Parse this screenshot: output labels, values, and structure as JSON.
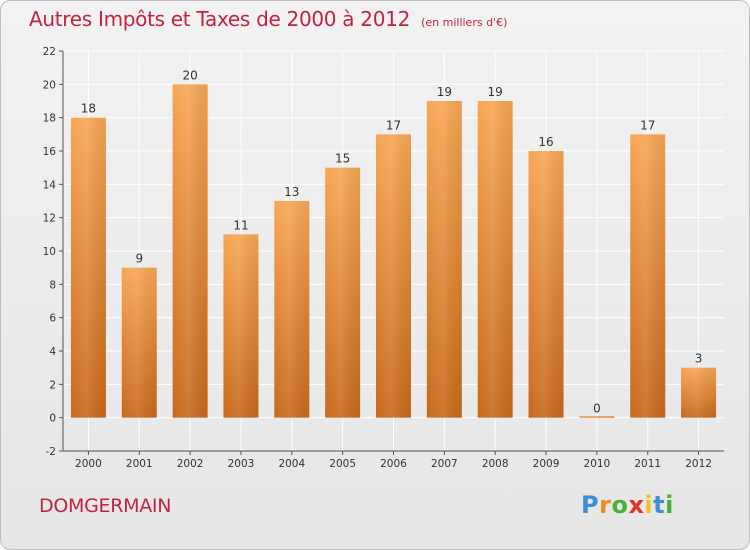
{
  "title": "Autres Impôts et Taxes de 2000 à 2012",
  "subtitle": "(en milliers d'€)",
  "commune": "DOMGERMAIN",
  "logo": {
    "letters": [
      "P",
      "r",
      "o",
      "x",
      "i",
      "t",
      "i"
    ],
    "colors": [
      "#3a8fd6",
      "#f08a1c",
      "#46b03a",
      "#e2332b",
      "#f2c21a",
      "#3a8fd6",
      "#46b03a"
    ]
  },
  "colors": {
    "bar_top": "#f7a654",
    "bar_bottom": "#c8691c",
    "title": "#c0243e",
    "grid": "#ffffff",
    "axis": "#555555"
  },
  "chart_data": {
    "type": "bar",
    "title": "Autres Impôts et Taxes de 2000 à 2012",
    "subtitle": "(en milliers d'€)",
    "categories": [
      "2000",
      "2001",
      "2002",
      "2003",
      "2004",
      "2005",
      "2006",
      "2007",
      "2008",
      "2009",
      "2010",
      "2011",
      "2012"
    ],
    "values": [
      18,
      9,
      20,
      11,
      13,
      15,
      17,
      19,
      19,
      16,
      0,
      17,
      3
    ],
    "ylim": [
      -2,
      22
    ],
    "yticks": [
      -2,
      0,
      2,
      4,
      6,
      8,
      10,
      12,
      14,
      16,
      18,
      20,
      22
    ],
    "grid": true,
    "xlabel": "",
    "ylabel": ""
  }
}
